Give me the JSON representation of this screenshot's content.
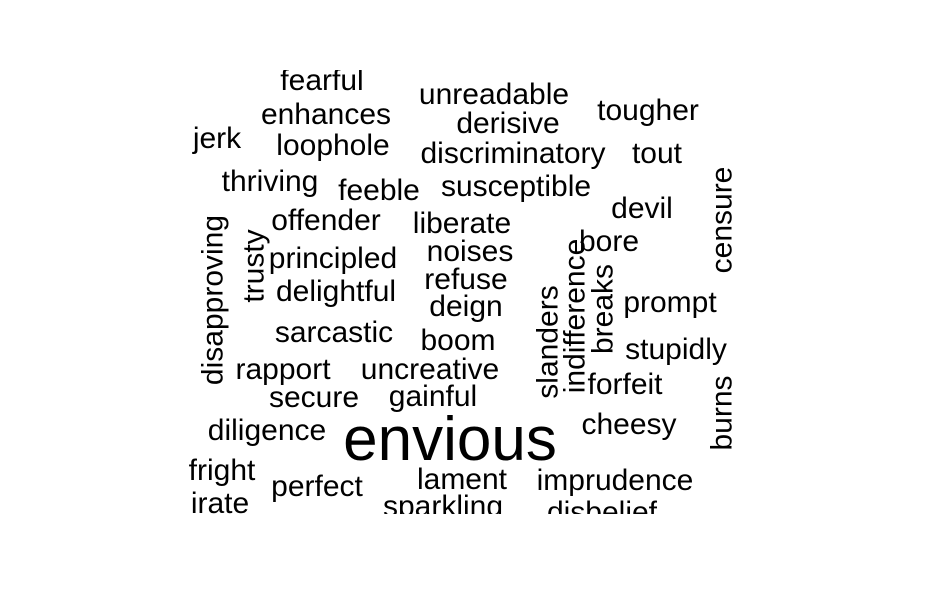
{
  "chart_data": {
    "type": "wordcloud",
    "words": [
      {
        "text": "envious",
        "weight": 5,
        "rotated": false
      },
      {
        "text": "fearful",
        "weight": 1,
        "rotated": false
      },
      {
        "text": "unreadable",
        "weight": 1,
        "rotated": false
      },
      {
        "text": "enhances",
        "weight": 1,
        "rotated": false
      },
      {
        "text": "tougher",
        "weight": 1,
        "rotated": false
      },
      {
        "text": "derisive",
        "weight": 1,
        "rotated": false
      },
      {
        "text": "jerk",
        "weight": 1,
        "rotated": false
      },
      {
        "text": "loophole",
        "weight": 1,
        "rotated": false
      },
      {
        "text": "discriminatory",
        "weight": 1,
        "rotated": false
      },
      {
        "text": "tout",
        "weight": 1,
        "rotated": false
      },
      {
        "text": "thriving",
        "weight": 1,
        "rotated": false
      },
      {
        "text": "feeble",
        "weight": 1,
        "rotated": false
      },
      {
        "text": "susceptible",
        "weight": 1,
        "rotated": false
      },
      {
        "text": "censure",
        "weight": 1,
        "rotated": true
      },
      {
        "text": "devil",
        "weight": 1,
        "rotated": false
      },
      {
        "text": "offender",
        "weight": 1,
        "rotated": false
      },
      {
        "text": "liberate",
        "weight": 1,
        "rotated": false
      },
      {
        "text": "disapproving",
        "weight": 1,
        "rotated": true
      },
      {
        "text": "trusty",
        "weight": 1,
        "rotated": true
      },
      {
        "text": "bore",
        "weight": 1,
        "rotated": false
      },
      {
        "text": "principled",
        "weight": 1,
        "rotated": false
      },
      {
        "text": "noises",
        "weight": 1,
        "rotated": false
      },
      {
        "text": "refuse",
        "weight": 1,
        "rotated": false
      },
      {
        "text": "indifference",
        "weight": 1,
        "rotated": true
      },
      {
        "text": "breaks",
        "weight": 1,
        "rotated": true
      },
      {
        "text": "delightful",
        "weight": 1,
        "rotated": false
      },
      {
        "text": "prompt",
        "weight": 1,
        "rotated": false
      },
      {
        "text": "deign",
        "weight": 1,
        "rotated": false
      },
      {
        "text": "slanders",
        "weight": 1,
        "rotated": true
      },
      {
        "text": "sarcastic",
        "weight": 1,
        "rotated": false
      },
      {
        "text": "boom",
        "weight": 1,
        "rotated": false
      },
      {
        "text": "stupidly",
        "weight": 1,
        "rotated": false
      },
      {
        "text": "rapport",
        "weight": 1,
        "rotated": false
      },
      {
        "text": "uncreative",
        "weight": 1,
        "rotated": false
      },
      {
        "text": "forfeit",
        "weight": 1,
        "rotated": false
      },
      {
        "text": "burns",
        "weight": 1,
        "rotated": true
      },
      {
        "text": "secure",
        "weight": 1,
        "rotated": false
      },
      {
        "text": "gainful",
        "weight": 1,
        "rotated": false
      },
      {
        "text": "cheesy",
        "weight": 1,
        "rotated": false
      },
      {
        "text": "diligence",
        "weight": 1,
        "rotated": false
      },
      {
        "text": "fright",
        "weight": 1,
        "rotated": false
      },
      {
        "text": "lament",
        "weight": 1,
        "rotated": false
      },
      {
        "text": "imprudence",
        "weight": 1,
        "rotated": false
      },
      {
        "text": "perfect",
        "weight": 1,
        "rotated": false
      },
      {
        "text": "irate",
        "weight": 1,
        "rotated": false
      },
      {
        "text": "sparkling",
        "weight": 1,
        "rotated": false
      },
      {
        "text": "disbelief",
        "weight": 1,
        "rotated": false
      }
    ]
  }
}
